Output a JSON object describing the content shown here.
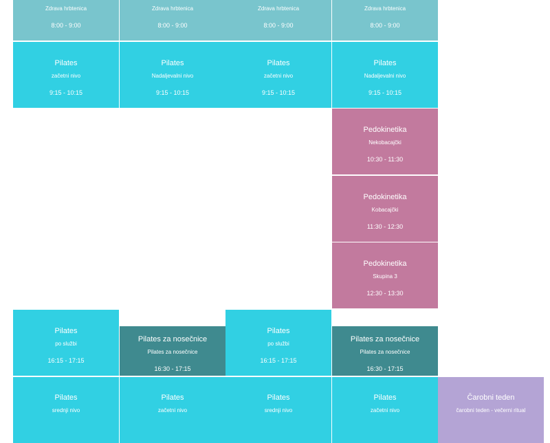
{
  "events": [
    {
      "subtitle": "Zdrava hrbtenica",
      "time": "8:00 - 9:00"
    },
    {
      "subtitle": "Zdrava hrbtenica",
      "time": "8:00 - 9:00"
    },
    {
      "subtitle": "Zdrava hrbtenica",
      "time": "8:00 - 9:00"
    },
    {
      "subtitle": "Zdrava hrbtenica",
      "time": "8:00 - 9:00"
    },
    {
      "title": "Pilates",
      "subtitle": "začetni nivo",
      "time": "9:15 - 10:15"
    },
    {
      "title": "Pilates",
      "subtitle": "Nadaljevalni nivo",
      "time": "9:15 - 10:15"
    },
    {
      "title": "Pilates",
      "subtitle": "začetni nivo",
      "time": "9:15 - 10:15"
    },
    {
      "title": "Pilates",
      "subtitle": "Nadaljevalni nivo",
      "time": "9:15 - 10:15"
    },
    {
      "title": "Pedokinetika",
      "subtitle": "Nekobacajčki",
      "time": "10:30 - 11:30"
    },
    {
      "title": "Pedokinetika",
      "subtitle": "Kobacajčki",
      "time": "11:30 - 12:30"
    },
    {
      "title": "Pedokinetika",
      "subtitle": "Skupina 3",
      "time": "12:30 - 13:30"
    },
    {
      "title": "Pilates",
      "subtitle": "po službi",
      "time": "16:15 - 17:15"
    },
    {
      "title": "Pilates za nosečnice",
      "subtitle": "Pilates za nosečnice",
      "time": "16:30 - 17:15"
    },
    {
      "title": "Pilates",
      "subtitle": "po službi",
      "time": "16:15 - 17:15"
    },
    {
      "title": "Pilates za nosečnice",
      "subtitle": "Pilates za nosečnice",
      "time": "16:30 - 17:15"
    },
    {
      "title": "Pilates",
      "subtitle": "srednji nivo"
    },
    {
      "title": "Pilates",
      "subtitle": "začetni nivo"
    },
    {
      "title": "Pilates",
      "subtitle": "srednji nivo"
    },
    {
      "title": "Pilates",
      "subtitle": "začetni nivo"
    },
    {
      "title": "Čarobni teden",
      "subtitle": "čarobni teden - večerni ritual"
    }
  ]
}
